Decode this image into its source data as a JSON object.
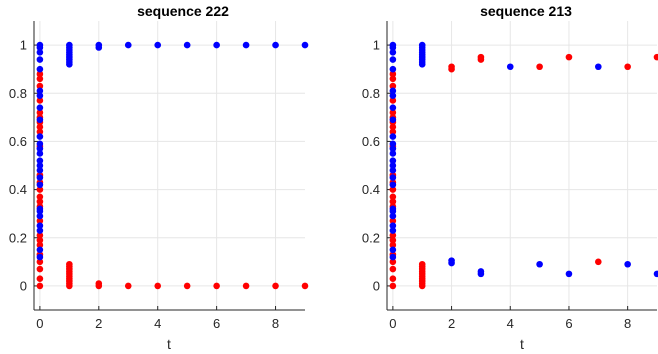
{
  "colors": {
    "series_a": "#ff0000",
    "series_b": "#0000ff",
    "grid": "#e6e6e6",
    "axis": "#262626"
  },
  "chart_data": [
    {
      "type": "scatter",
      "title": "sequence 222",
      "xlabel": "t",
      "ylabel": "",
      "xlim": [
        -0.2,
        9
      ],
      "ylim": [
        -0.1,
        1.1
      ],
      "xticks": [
        "0",
        "2",
        "4",
        "6",
        "8"
      ],
      "yticks": [
        "0",
        "0.2",
        "0.4",
        "0.6",
        "0.8",
        "1"
      ],
      "grid": true,
      "series": [
        {
          "color": "red",
          "points": [
            [
              0,
              0.0
            ],
            [
              0,
              0.03
            ],
            [
              0,
              0.07
            ],
            [
              0,
              0.1
            ],
            [
              0,
              0.13
            ],
            [
              0,
              0.17
            ],
            [
              0,
              0.19
            ],
            [
              0,
              0.21
            ],
            [
              0,
              0.27
            ],
            [
              0,
              0.33
            ],
            [
              0,
              0.35
            ],
            [
              0,
              0.37
            ],
            [
              0,
              0.4
            ],
            [
              0,
              0.43
            ],
            [
              0,
              0.46
            ],
            [
              0,
              0.58
            ],
            [
              0,
              0.64
            ],
            [
              0,
              0.66
            ],
            [
              0,
              0.68
            ],
            [
              0,
              0.7
            ],
            [
              0,
              0.72
            ],
            [
              0,
              0.77
            ],
            [
              0,
              0.83
            ],
            [
              0,
              0.86
            ],
            [
              0,
              0.88
            ],
            [
              1,
              0.0
            ],
            [
              1,
              0.01
            ],
            [
              1,
              0.02
            ],
            [
              1,
              0.03
            ],
            [
              1,
              0.04
            ],
            [
              1,
              0.05
            ],
            [
              1,
              0.06
            ],
            [
              1,
              0.07
            ],
            [
              1,
              0.08
            ],
            [
              1,
              0.09
            ],
            [
              2,
              0.0
            ],
            [
              2,
              0.01
            ],
            [
              3,
              0.0
            ],
            [
              4,
              0.0
            ],
            [
              5,
              0.0
            ],
            [
              6,
              0.0
            ],
            [
              7,
              0.0
            ],
            [
              8,
              0.0
            ],
            [
              9,
              0.0
            ]
          ]
        },
        {
          "color": "blue",
          "points": [
            [
              0,
              0.12
            ],
            [
              0,
              0.15
            ],
            [
              0,
              0.23
            ],
            [
              0,
              0.25
            ],
            [
              0,
              0.29
            ],
            [
              0,
              0.31
            ],
            [
              0,
              0.32
            ],
            [
              0,
              0.42
            ],
            [
              0,
              0.45
            ],
            [
              0,
              0.48
            ],
            [
              0,
              0.5
            ],
            [
              0,
              0.52
            ],
            [
              0,
              0.55
            ],
            [
              0,
              0.57
            ],
            [
              0,
              0.59
            ],
            [
              0,
              0.62
            ],
            [
              0,
              0.69
            ],
            [
              0,
              0.74
            ],
            [
              0,
              0.79
            ],
            [
              0,
              0.81
            ],
            [
              0,
              0.9
            ],
            [
              0,
              0.94
            ],
            [
              0,
              0.97
            ],
            [
              0,
              0.99
            ],
            [
              0,
              1.0
            ],
            [
              1,
              0.92
            ],
            [
              1,
              0.93
            ],
            [
              1,
              0.94
            ],
            [
              1,
              0.95
            ],
            [
              1,
              0.96
            ],
            [
              1,
              0.97
            ],
            [
              1,
              0.98
            ],
            [
              1,
              0.99
            ],
            [
              1,
              1.0
            ],
            [
              2,
              0.99
            ],
            [
              2,
              1.0
            ],
            [
              3,
              1.0
            ],
            [
              4,
              1.0
            ],
            [
              5,
              1.0
            ],
            [
              6,
              1.0
            ],
            [
              7,
              1.0
            ],
            [
              8,
              1.0
            ],
            [
              9,
              1.0
            ]
          ]
        }
      ]
    },
    {
      "type": "scatter",
      "title": "sequence 213",
      "xlabel": "t",
      "ylabel": "",
      "xlim": [
        -0.2,
        9
      ],
      "ylim": [
        -0.1,
        1.1
      ],
      "xticks": [
        "0",
        "2",
        "4",
        "6",
        "8"
      ],
      "yticks": [
        "0",
        "0.2",
        "0.4",
        "0.6",
        "0.8",
        "1"
      ],
      "grid": true,
      "series": [
        {
          "color": "red",
          "points": [
            [
              0,
              0.0
            ],
            [
              0,
              0.03
            ],
            [
              0,
              0.07
            ],
            [
              0,
              0.1
            ],
            [
              0,
              0.13
            ],
            [
              0,
              0.17
            ],
            [
              0,
              0.19
            ],
            [
              0,
              0.21
            ],
            [
              0,
              0.27
            ],
            [
              0,
              0.33
            ],
            [
              0,
              0.35
            ],
            [
              0,
              0.37
            ],
            [
              0,
              0.4
            ],
            [
              0,
              0.43
            ],
            [
              0,
              0.46
            ],
            [
              0,
              0.58
            ],
            [
              0,
              0.64
            ],
            [
              0,
              0.66
            ],
            [
              0,
              0.68
            ],
            [
              0,
              0.7
            ],
            [
              0,
              0.72
            ],
            [
              0,
              0.77
            ],
            [
              0,
              0.83
            ],
            [
              0,
              0.86
            ],
            [
              0,
              0.88
            ],
            [
              1,
              0.0
            ],
            [
              1,
              0.01
            ],
            [
              1,
              0.02
            ],
            [
              1,
              0.03
            ],
            [
              1,
              0.04
            ],
            [
              1,
              0.05
            ],
            [
              1,
              0.06
            ],
            [
              1,
              0.07
            ],
            [
              1,
              0.08
            ],
            [
              1,
              0.09
            ],
            [
              2,
              0.9
            ],
            [
              2,
              0.91
            ],
            [
              3,
              0.94
            ],
            [
              3,
              0.95
            ],
            [
              5,
              0.91
            ],
            [
              6,
              0.95
            ],
            [
              7,
              0.1
            ],
            [
              8,
              0.91
            ],
            [
              9,
              0.95
            ]
          ]
        },
        {
          "color": "blue",
          "points": [
            [
              0,
              0.12
            ],
            [
              0,
              0.15
            ],
            [
              0,
              0.23
            ],
            [
              0,
              0.25
            ],
            [
              0,
              0.29
            ],
            [
              0,
              0.31
            ],
            [
              0,
              0.32
            ],
            [
              0,
              0.42
            ],
            [
              0,
              0.45
            ],
            [
              0,
              0.48
            ],
            [
              0,
              0.5
            ],
            [
              0,
              0.52
            ],
            [
              0,
              0.55
            ],
            [
              0,
              0.57
            ],
            [
              0,
              0.59
            ],
            [
              0,
              0.62
            ],
            [
              0,
              0.69
            ],
            [
              0,
              0.74
            ],
            [
              0,
              0.79
            ],
            [
              0,
              0.81
            ],
            [
              0,
              0.9
            ],
            [
              0,
              0.94
            ],
            [
              0,
              0.97
            ],
            [
              0,
              0.99
            ],
            [
              0,
              1.0
            ],
            [
              1,
              0.92
            ],
            [
              1,
              0.93
            ],
            [
              1,
              0.94
            ],
            [
              1,
              0.95
            ],
            [
              1,
              0.96
            ],
            [
              1,
              0.97
            ],
            [
              1,
              0.98
            ],
            [
              1,
              0.99
            ],
            [
              1,
              1.0
            ],
            [
              2,
              0.095
            ],
            [
              2,
              0.105
            ],
            [
              3,
              0.05
            ],
            [
              3,
              0.06
            ],
            [
              4,
              0.91
            ],
            [
              5,
              0.09
            ],
            [
              6,
              0.05
            ],
            [
              7,
              0.91
            ],
            [
              8,
              0.09
            ],
            [
              9,
              0.05
            ]
          ]
        }
      ]
    }
  ]
}
